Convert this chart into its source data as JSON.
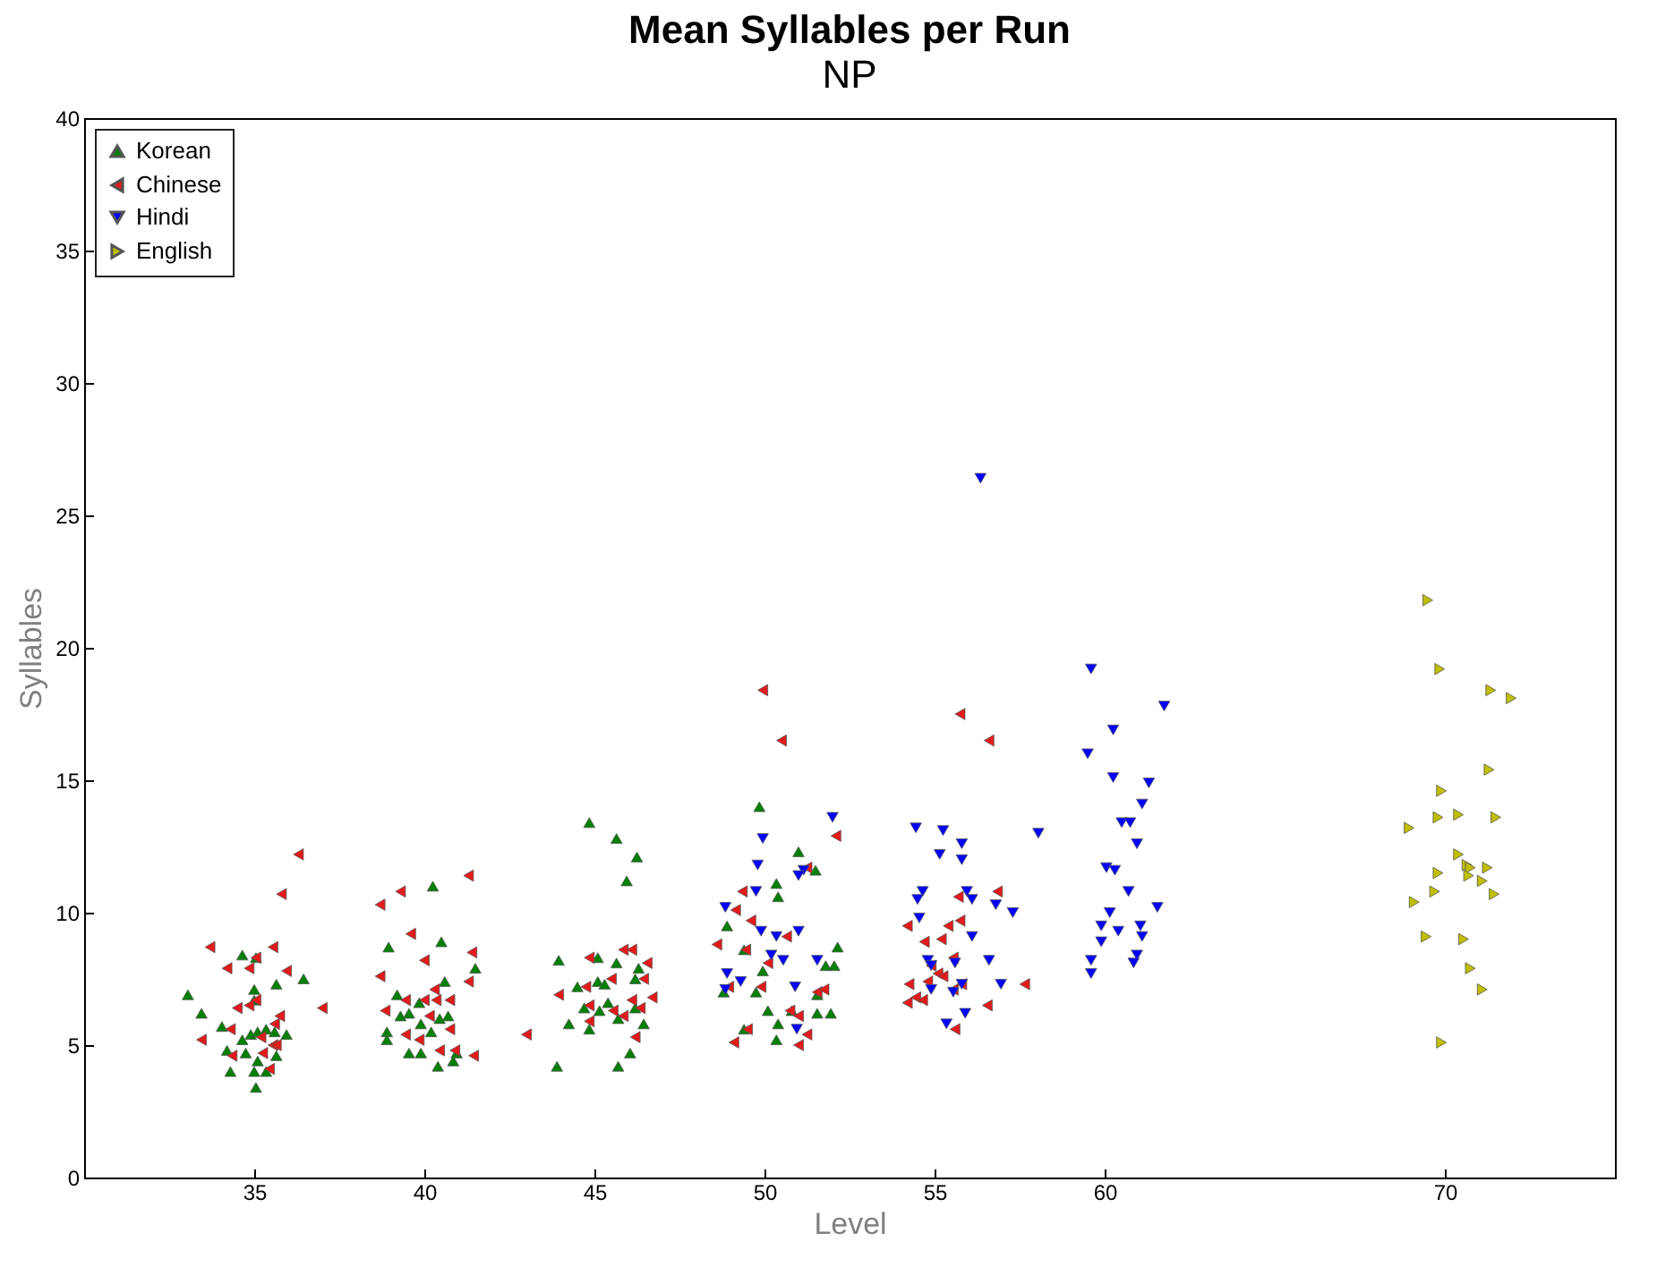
{
  "chart_data": {
    "type": "scatter",
    "title": "Mean Syllables per Run",
    "subtitle": "NP",
    "xlabel": "Level",
    "ylabel": "Syllables",
    "xlim": [
      30,
      75
    ],
    "xticks": [
      35,
      40,
      45,
      50,
      55,
      60,
      70
    ],
    "ylim": [
      0,
      40
    ],
    "yticks": [
      0,
      5,
      10,
      15,
      20,
      25,
      30,
      35,
      40
    ],
    "grid": false,
    "legend": "top left",
    "series": [
      {
        "name": "Korean",
        "color": "#008000",
        "marker": "triangle-up",
        "x": [
          34.65,
          35.05,
          35.65,
          36.45,
          33.05,
          35,
          33.45,
          35,
          34.05,
          35.95,
          34.65,
          34.9,
          35.1,
          35.35,
          35.6,
          34.2,
          34.75,
          35.65,
          35.1,
          34.3,
          35,
          35.35,
          35.05,
          40.25,
          38.95,
          40.5,
          41.5,
          40.6,
          39.2,
          39.85,
          39.3,
          39.55,
          39.9,
          40.45,
          40.7,
          38.9,
          40.2,
          38.9,
          39.55,
          39.9,
          40.4,
          40.85,
          40.95,
          44.85,
          45.65,
          46.25,
          45.95,
          43.95,
          45.1,
          45.65,
          46.3,
          44.5,
          45.1,
          45.3,
          46.2,
          44.7,
          45.15,
          45.4,
          46.2,
          45.7,
          44.25,
          44.85,
          46.45,
          46.05,
          43.9,
          45.7,
          49.85,
          51,
          51.5,
          50.35,
          50.4,
          48.9,
          49.4,
          52.15,
          49.95,
          51.8,
          52.05,
          48.8,
          49.75,
          51.55,
          50.1,
          50.8,
          51.55,
          51.95,
          49.4,
          50.4,
          50.35
        ],
        "values": [
          8.4,
          8.3,
          7.3,
          7.5,
          6.9,
          7.1,
          6.2,
          6.7,
          5.7,
          5.4,
          5.2,
          5.4,
          5.5,
          5.6,
          5.5,
          4.8,
          4.7,
          4.6,
          4.4,
          4.0,
          4.0,
          4.0,
          3.4,
          11.0,
          8.7,
          8.9,
          7.9,
          7.4,
          6.9,
          6.6,
          6.1,
          6.2,
          5.8,
          6.0,
          6.1,
          5.5,
          5.5,
          5.2,
          4.7,
          4.7,
          4.2,
          4.4,
          4.7,
          13.4,
          12.8,
          12.1,
          11.2,
          8.2,
          8.3,
          8.1,
          7.9,
          7.2,
          7.4,
          7.3,
          7.5,
          6.4,
          6.3,
          6.6,
          6.4,
          6.0,
          5.8,
          5.6,
          5.8,
          4.7,
          4.2,
          4.2,
          14.0,
          12.3,
          11.6,
          11.1,
          10.6,
          9.5,
          8.6,
          8.7,
          7.8,
          8.0,
          8.0,
          7.0,
          7.0,
          6.9,
          6.3,
          6.3,
          6.2,
          6.2,
          5.6,
          5.8,
          5.2
        ]
      },
      {
        "name": "Chinese",
        "color": "#e41a1a",
        "marker": "triangle-left",
        "x": [
          36.3,
          35.8,
          33.7,
          35.55,
          34.2,
          34.85,
          35.05,
          35.95,
          37,
          34.5,
          34.85,
          35.05,
          33.45,
          35.75,
          35.6,
          34.3,
          35.55,
          35.2,
          35.25,
          35.45,
          34.35,
          35.65,
          41.3,
          39.3,
          38.7,
          39.6,
          41.4,
          40,
          38.7,
          41.3,
          40.3,
          39.45,
          40,
          40.35,
          40.75,
          38.85,
          40.15,
          40.75,
          39.45,
          39.85,
          40.45,
          40.9,
          41.45,
          45.85,
          46.1,
          44.85,
          46.55,
          45.5,
          44.75,
          46.45,
          43.95,
          46.7,
          46.1,
          44.85,
          46.35,
          45.55,
          45.85,
          44.85,
          46.2,
          43,
          49.95,
          50.5,
          52.1,
          51.25,
          49.35,
          49.15,
          49.6,
          48.6,
          49.45,
          50.65,
          50.1,
          48.95,
          49.9,
          51.55,
          51.75,
          50.75,
          51,
          49.5,
          49.1,
          51.25,
          51,
          55.75,
          56.6,
          56.85,
          55.7,
          55.75,
          55.4,
          54.2,
          55.2,
          54.7,
          55.55,
          54.9,
          55.1,
          55.25,
          54.8,
          54.25,
          55.55,
          55.8,
          57.65,
          54.45,
          54.65,
          54.2,
          56.55,
          55.6
        ],
        "values": [
          12.2,
          10.7,
          8.7,
          8.7,
          7.9,
          7.9,
          8.3,
          7.8,
          6.4,
          6.4,
          6.5,
          6.7,
          5.2,
          6.1,
          5.8,
          5.6,
          5.0,
          5.3,
          4.7,
          4.1,
          4.6,
          5.0,
          11.4,
          10.8,
          10.3,
          9.2,
          8.5,
          8.2,
          7.6,
          7.4,
          7.1,
          6.7,
          6.7,
          6.7,
          6.7,
          6.3,
          6.1,
          5.6,
          5.4,
          5.2,
          4.8,
          4.8,
          4.6,
          8.6,
          8.6,
          8.3,
          8.1,
          7.5,
          7.2,
          7.5,
          6.9,
          6.8,
          6.7,
          6.5,
          6.4,
          6.3,
          6.1,
          5.9,
          5.3,
          5.4,
          18.4,
          16.5,
          12.9,
          11.7,
          10.8,
          10.1,
          9.7,
          8.8,
          8.6,
          9.1,
          8.1,
          7.2,
          7.2,
          7.0,
          7.1,
          6.3,
          6.1,
          5.6,
          5.1,
          5.4,
          5.0,
          17.5,
          16.5,
          10.8,
          10.6,
          9.7,
          9.5,
          9.5,
          9.0,
          8.9,
          8.3,
          8.0,
          7.7,
          7.6,
          7.4,
          7.3,
          7.1,
          7.3,
          7.3,
          6.8,
          6.7,
          6.6,
          6.5,
          5.6
        ]
      },
      {
        "name": "Hindi",
        "color": "#0000ff",
        "marker": "triangle-down",
        "x": [
          52,
          49.95,
          49.8,
          51.15,
          51,
          49.75,
          48.85,
          49.9,
          50.35,
          51,
          50.2,
          50.55,
          48.9,
          49.3,
          50.9,
          51.55,
          48.85,
          50.95,
          56.35,
          54.45,
          55.25,
          55.8,
          55.15,
          55.8,
          58.05,
          54.65,
          54.5,
          55.95,
          56.1,
          56.8,
          57.3,
          54.55,
          56.1,
          54.8,
          55.6,
          56.6,
          54.9,
          55.55,
          55.8,
          56.95,
          55.9,
          55.35,
          54.9,
          59.6,
          61.75,
          60.25,
          59.5,
          60.25,
          61.3,
          61.1,
          60.5,
          60.75,
          60.95,
          60.05,
          60.3,
          60.7,
          61.55,
          60.15,
          59.9,
          60.4,
          61.05,
          61.1,
          59.9,
          60.95,
          60.85,
          59.6,
          59.6
        ],
        "values": [
          13.6,
          12.8,
          11.8,
          11.6,
          11.4,
          10.8,
          10.2,
          9.3,
          9.1,
          9.3,
          8.4,
          8.2,
          7.7,
          7.4,
          7.2,
          8.2,
          7.1,
          5.6,
          26.4,
          13.2,
          13.1,
          12.6,
          12.2,
          12.0,
          13.0,
          10.8,
          10.5,
          10.8,
          10.5,
          10.3,
          10.0,
          9.8,
          9.1,
          8.2,
          8.1,
          8.2,
          7.1,
          7.0,
          7.3,
          7.3,
          6.2,
          5.8,
          8.0,
          19.2,
          17.8,
          16.9,
          16.0,
          15.1,
          14.9,
          14.1,
          13.4,
          13.4,
          12.6,
          11.7,
          11.6,
          10.8,
          10.2,
          10.0,
          9.5,
          9.3,
          9.5,
          9.1,
          8.9,
          8.4,
          8.1,
          8.2,
          7.7
        ]
      },
      {
        "name": "English",
        "color": "#bfbf00",
        "marker": "triangle-right",
        "x": [
          69.5,
          69.85,
          71.35,
          71.95,
          71.3,
          69.9,
          68.95,
          69.8,
          70.4,
          71.5,
          70.4,
          70.65,
          70.75,
          71.25,
          69.8,
          70.7,
          71.1,
          69.7,
          71.45,
          69.1,
          69.45,
          70.55,
          70.75,
          71.1,
          69.9
        ],
        "values": [
          21.8,
          19.2,
          18.4,
          18.1,
          15.4,
          14.6,
          13.2,
          13.6,
          13.7,
          13.6,
          12.2,
          11.8,
          11.7,
          11.7,
          11.5,
          11.4,
          11.2,
          10.8,
          10.7,
          10.4,
          9.1,
          9.0,
          7.9,
          7.1,
          5.1
        ]
      }
    ]
  }
}
